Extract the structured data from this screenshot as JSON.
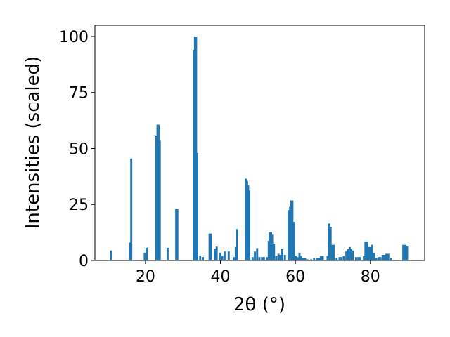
{
  "chart_data": {
    "type": "bar",
    "title": "",
    "xlabel": "2θ (°)",
    "ylabel": "Intensities (scaled)",
    "xlim": [
      6.5,
      94.5
    ],
    "ylim": [
      0,
      105
    ],
    "xticks": [
      20,
      40,
      60,
      80
    ],
    "yticks": [
      0,
      25,
      50,
      75,
      100
    ],
    "grid": false,
    "bar_width": 0.55,
    "bar_color": "#1f77b4",
    "x": [
      10.8,
      15.9,
      16.2,
      19.8,
      20.3,
      22.9,
      23.2,
      23.5,
      23.8,
      25.9,
      28.2,
      28.5,
      32.9,
      33.2,
      33.5,
      33.8,
      34.6,
      35.3,
      37.1,
      37.4,
      38.5,
      39.0,
      40.0,
      40.5,
      41.1,
      42.2,
      43.6,
      44.1,
      44.4,
      46.8,
      47.1,
      47.4,
      47.7,
      48.6,
      49.2,
      49.8,
      50.4,
      51.1,
      51.6,
      52.5,
      52.9,
      53.2,
      53.5,
      53.8,
      54.3,
      54.9,
      55.5,
      55.9,
      56.5,
      57.2,
      58.2,
      58.6,
      58.9,
      59.2,
      59.6,
      60.1,
      60.6,
      61.1,
      61.5,
      62.0,
      62.6,
      63.2,
      64.2,
      65.0,
      65.8,
      66.3,
      66.8,
      67.3,
      68.6,
      69.0,
      69.4,
      69.8,
      70.2,
      71.0,
      71.8,
      72.3,
      72.9,
      73.6,
      74.1,
      74.5,
      74.9,
      75.3,
      76.2,
      76.8,
      77.3,
      78.3,
      78.7,
      79.1,
      79.6,
      80.0,
      80.4,
      81.0,
      81.6,
      82.2,
      82.7,
      83.3,
      83.8,
      84.3,
      84.8,
      85.4,
      88.8,
      89.3,
      89.8
    ],
    "values": [
      4.5,
      8,
      45.5,
      3.5,
      5.7,
      55.8,
      60.6,
      60.6,
      53.5,
      5.7,
      23.1,
      23.1,
      94,
      100,
      100,
      48,
      2,
      1.5,
      12,
      12,
      5,
      6.2,
      3.5,
      2,
      4,
      4,
      1.5,
      6,
      14,
      36.5,
      35.5,
      33.5,
      31.2,
      1.5,
      4,
      5.5,
      1.5,
      1.5,
      1.5,
      1.5,
      8.8,
      12.6,
      12.6,
      11.5,
      7.5,
      2,
      3,
      2.5,
      5,
      2.5,
      22.5,
      24,
      26.8,
      26.8,
      17.2,
      2,
      1.5,
      3.5,
      2,
      1,
      1,
      0.5,
      0.5,
      1,
      1,
      1,
      2,
      2,
      2,
      16.5,
      15,
      7,
      7,
      1,
      1.5,
      1.5,
      2,
      4,
      5,
      6,
      5,
      4.5,
      1.5,
      1.5,
      1.5,
      2,
      8.5,
      8.5,
      6,
      6,
      7,
      3.5,
      1,
      1.5,
      1.5,
      2.5,
      2.5,
      3,
      3,
      1,
      7,
      7,
      6.5
    ]
  }
}
